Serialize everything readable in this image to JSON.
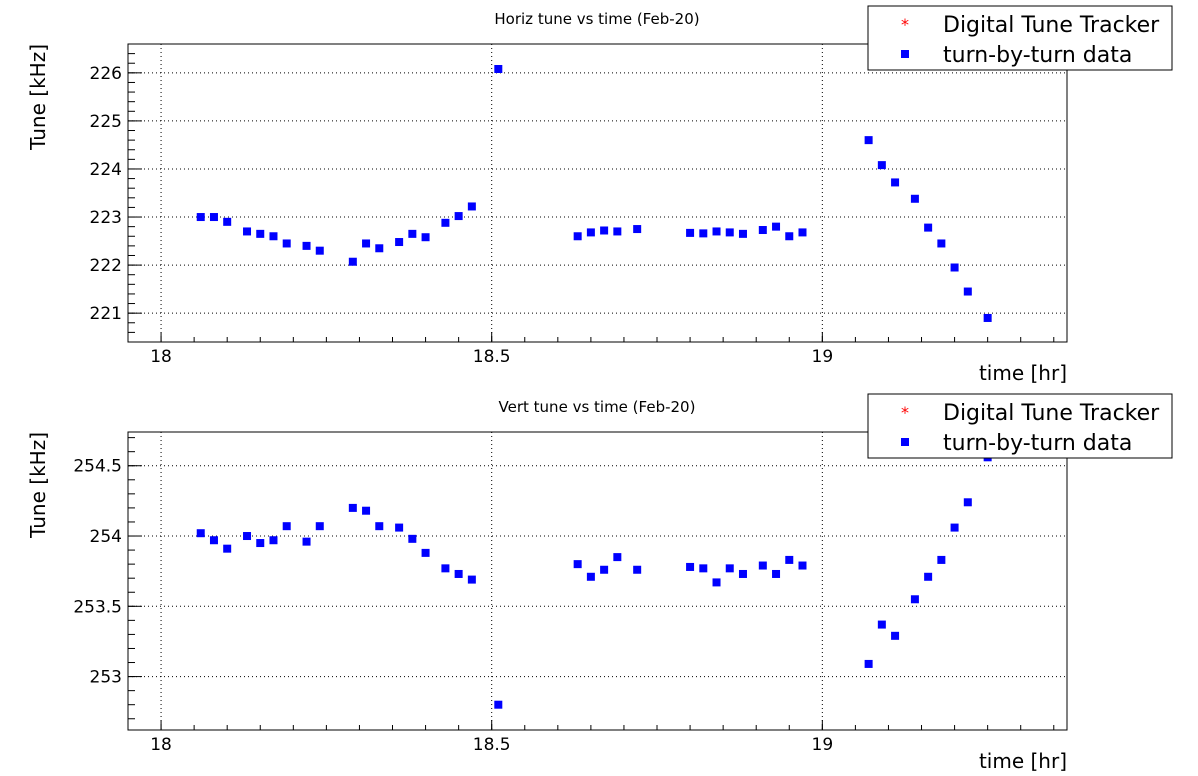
{
  "chart_data": [
    {
      "type": "scatter",
      "title": "Horiz tune vs time (Feb-20)",
      "xlabel": "time [hr]",
      "ylabel": "Tune [kHz]",
      "xlim": [
        17.95,
        19.37
      ],
      "ylim": [
        220.4,
        226.6
      ],
      "xticks": [
        "18",
        "18.5",
        "19"
      ],
      "yticks": [
        "221",
        "222",
        "223",
        "224",
        "225",
        "226"
      ],
      "grid": true,
      "legend_position": "top-right",
      "legend": [
        {
          "label": "Digital Tune Tracker",
          "color": "#ff0000",
          "marker": "star"
        },
        {
          "label": "turn-by-turn data",
          "color": "#0000ff",
          "marker": "square"
        }
      ],
      "series": [
        {
          "name": "Digital Tune Tracker",
          "color": "#ff0000",
          "x": [],
          "y": []
        },
        {
          "name": "turn-by-turn data",
          "color": "#0000ff",
          "x": [
            18.06,
            18.08,
            18.1,
            18.13,
            18.15,
            18.17,
            18.19,
            18.22,
            18.24,
            18.29,
            18.31,
            18.33,
            18.36,
            18.38,
            18.4,
            18.43,
            18.45,
            18.47,
            18.51,
            18.63,
            18.65,
            18.67,
            18.69,
            18.72,
            18.8,
            18.82,
            18.84,
            18.86,
            18.88,
            18.91,
            18.93,
            18.95,
            18.97,
            19.07,
            19.09,
            19.11,
            19.14,
            19.16,
            19.18,
            19.2,
            19.22,
            19.25
          ],
          "y": [
            223.0,
            223.0,
            222.9,
            222.7,
            222.65,
            222.6,
            222.45,
            222.4,
            222.3,
            222.07,
            222.45,
            222.35,
            222.48,
            222.65,
            222.58,
            222.88,
            223.02,
            223.22,
            226.08,
            222.6,
            222.68,
            222.72,
            222.7,
            222.75,
            222.67,
            222.66,
            222.7,
            222.68,
            222.65,
            222.73,
            222.8,
            222.6,
            222.68,
            224.6,
            224.08,
            223.72,
            223.38,
            222.78,
            222.45,
            221.95,
            221.45,
            220.9
          ]
        }
      ]
    },
    {
      "type": "scatter",
      "title": "Vert tune vs time (Feb-20)",
      "xlabel": "time [hr]",
      "ylabel": "Tune [kHz]",
      "xlim": [
        17.95,
        19.37
      ],
      "ylim": [
        252.62,
        254.74
      ],
      "xticks": [
        "18",
        "18.5",
        "19"
      ],
      "yticks": [
        "253",
        "253.5",
        "254",
        "254.5"
      ],
      "grid": true,
      "legend_position": "top-right",
      "legend": [
        {
          "label": "Digital Tune Tracker",
          "color": "#ff0000",
          "marker": "star"
        },
        {
          "label": "turn-by-turn data",
          "color": "#0000ff",
          "marker": "square"
        }
      ],
      "series": [
        {
          "name": "Digital Tune Tracker",
          "color": "#ff0000",
          "x": [],
          "y": []
        },
        {
          "name": "turn-by-turn data",
          "color": "#0000ff",
          "x": [
            18.06,
            18.08,
            18.1,
            18.13,
            18.15,
            18.17,
            18.19,
            18.22,
            18.24,
            18.29,
            18.31,
            18.33,
            18.36,
            18.38,
            18.4,
            18.43,
            18.45,
            18.47,
            18.51,
            18.63,
            18.65,
            18.67,
            18.69,
            18.72,
            18.8,
            18.82,
            18.84,
            18.86,
            18.88,
            18.91,
            18.93,
            18.95,
            18.97,
            19.07,
            19.09,
            19.11,
            19.14,
            19.16,
            19.18,
            19.2,
            19.22,
            19.25
          ],
          "y": [
            254.02,
            253.97,
            253.91,
            254.0,
            253.95,
            253.97,
            254.07,
            253.96,
            254.07,
            254.2,
            254.18,
            254.07,
            254.06,
            253.98,
            253.88,
            253.77,
            253.73,
            253.69,
            252.8,
            253.8,
            253.71,
            253.76,
            253.85,
            253.76,
            253.78,
            253.77,
            253.67,
            253.77,
            253.73,
            253.79,
            253.73,
            253.83,
            253.79,
            253.09,
            253.37,
            253.29,
            253.55,
            253.71,
            253.83,
            254.06,
            254.24,
            254.56
          ]
        }
      ]
    }
  ]
}
